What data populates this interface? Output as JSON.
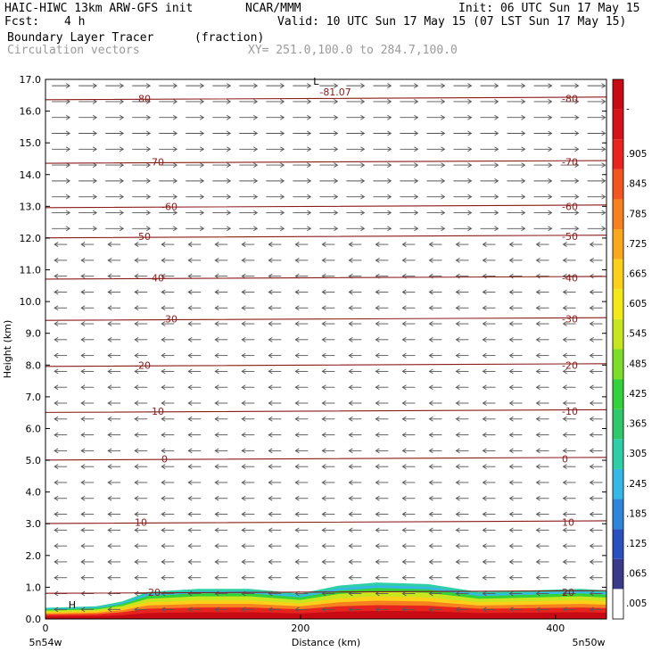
{
  "header": {
    "model": "HAIC-HIWC 13km ARW-GFS init",
    "org": "NCAR/MMM",
    "init": "Init: 06 UTC Sun 17 May 15",
    "fcst_label": "Fcst:",
    "fcst_value": "4 h",
    "valid": "Valid: 10 UTC Sun 17 May 15 (07 LST Sun 17 May 15)",
    "field": "Boundary Layer Tracer",
    "units": "(fraction)",
    "vectors": "Circulation vectors",
    "xy": "XY= 251.0,100.0 to 284.7,100.0"
  },
  "chart_data": {
    "type": "heatmap",
    "title": "Boundary Layer Tracer (fraction)",
    "xlabel": "Distance (km)",
    "ylabel": "Height (km)",
    "xlim": [
      0,
      440
    ],
    "ylim": [
      0,
      17
    ],
    "x_ticks": [
      0,
      200,
      400
    ],
    "y_ticks": [
      0.0,
      1.0,
      2.0,
      3.0,
      4.0,
      5.0,
      6.0,
      7.0,
      8.0,
      9.0,
      10.0,
      11.0,
      12.0,
      13.0,
      14.0,
      15.0,
      16.0,
      17.0
    ],
    "x_end_labels": {
      "left": "5n54w",
      "right": "5n50w"
    },
    "colorbar": {
      "labels": [
        ".005",
        ".065",
        ".125",
        ".185",
        ".245",
        ".305",
        ".365",
        ".425",
        ".485",
        ".545",
        ".605",
        ".665",
        ".725",
        ".785",
        ".845",
        ".905",
        "-"
      ],
      "colors": [
        "#ffffff",
        "#3a3a8a",
        "#2a4fbf",
        "#2e86d8",
        "#35b8e6",
        "#2ecfa6",
        "#2fc86a",
        "#33d23a",
        "#7edc2a",
        "#c8e61f",
        "#f3e81a",
        "#fbd01a",
        "#f9a81d",
        "#f7801f",
        "#f25520",
        "#e8241f",
        "#d4121a",
        "#c80a14"
      ]
    },
    "temperature_contours_C": [
      {
        "value": -80,
        "y_km": 16.4
      },
      {
        "value": -70,
        "y_km": 14.4
      },
      {
        "value": -60,
        "y_km": 13.0
      },
      {
        "value": -50,
        "y_km": 12.05
      },
      {
        "value": -40,
        "y_km": 10.75
      },
      {
        "value": -30,
        "y_km": 9.45
      },
      {
        "value": -20,
        "y_km": 8.0
      },
      {
        "value": -10,
        "y_km": 6.55
      },
      {
        "value": 0,
        "y_km": 5.05
      },
      {
        "value": 10,
        "y_km": 3.05
      },
      {
        "value": 20,
        "y_km": 0.85
      }
    ],
    "annotations": [
      "L",
      "-81.07",
      "H"
    ],
    "tracer_top_km": {
      "x": [
        0,
        40,
        60,
        80,
        120,
        160,
        200,
        230,
        260,
        300,
        340,
        380,
        420,
        440
      ],
      "y": [
        0.35,
        0.4,
        0.55,
        0.85,
        0.95,
        0.95,
        0.8,
        1.05,
        1.15,
        1.1,
        0.85,
        0.9,
        0.95,
        0.9
      ]
    }
  }
}
